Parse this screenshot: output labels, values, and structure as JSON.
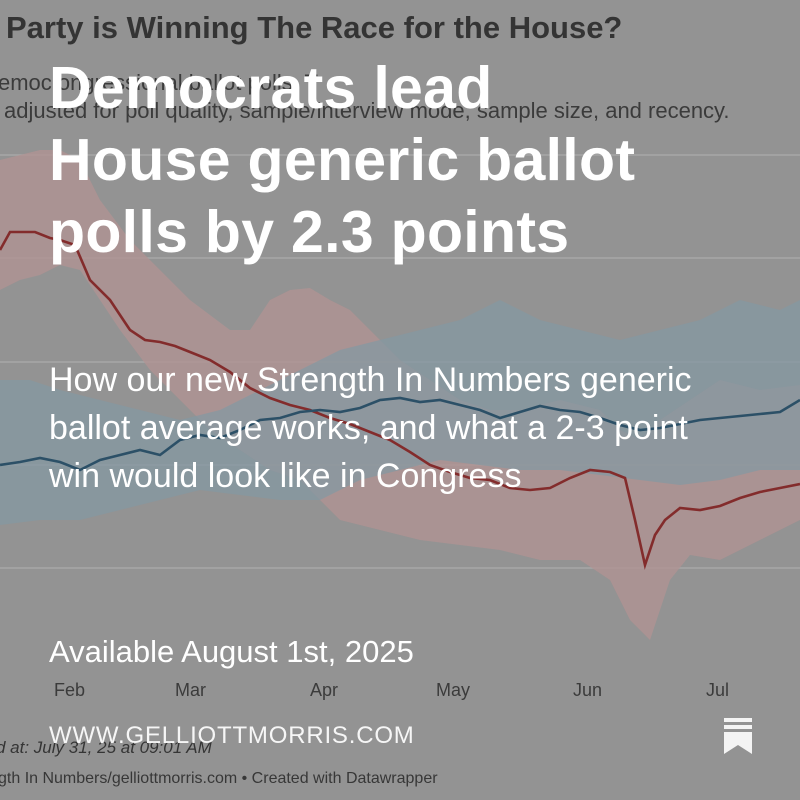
{
  "chart": {
    "title": "Party is Winning The Race for the House?",
    "subtitle_line1": "emoc                                                     ongressional ballot polls. T",
    "subtitle_line2": "adjusted for poll quality, sample/interview mode, sample size, and recency.",
    "months": [
      "Feb",
      "Mar",
      "Apr",
      "May",
      "Jun",
      "Jul"
    ],
    "updated": "d at: July 31, 25 at 09:01 AM",
    "credit": "gth In Numbers/gelliottmorris.com • Created with Datawrapper",
    "colors": {
      "dem": "#1f4e6b",
      "dem_band": "#8fa9b6",
      "rep": "#8f1f1f",
      "rep_band": "#c8a2a2",
      "grid": "#bdbdbd"
    }
  },
  "headline": "Democrats lead House generic ballot polls by 2.3 points",
  "subhead": "How our new Strength In Numbers generic ballot average works, and what a 2-3 point win would look like in Congress",
  "date": "Available August 1st, 2025",
  "domain": "WWW.GELLIOTTMORRIS.COM",
  "icons": {
    "bookmark": "bookmark-icon"
  }
}
